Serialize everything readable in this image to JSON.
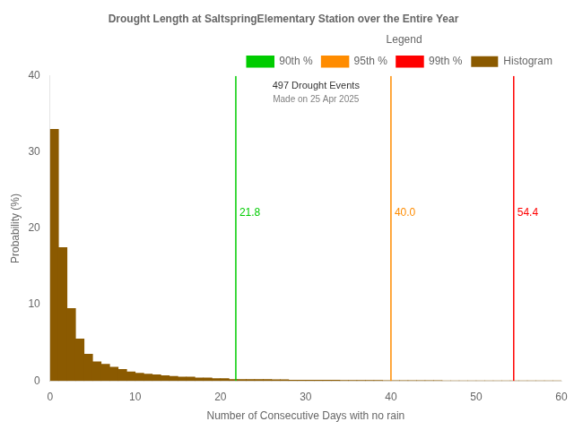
{
  "chart_data": {
    "type": "histogram",
    "title": "Drought Length at SaltspringElementary Station over the Entire Year",
    "xlabel": "Number of Consecutive Days with no rain",
    "ylabel": "Probability (%)",
    "bins": [
      0,
      1,
      2,
      3,
      4,
      5,
      6,
      7,
      8,
      9,
      10,
      11,
      12,
      13,
      14,
      15,
      16,
      17,
      18,
      19,
      20,
      21,
      22,
      23,
      24,
      25,
      26,
      27,
      28,
      29,
      30,
      31,
      32,
      33,
      34,
      35,
      36,
      37,
      38,
      39,
      40,
      41,
      42,
      43,
      44,
      45,
      46,
      47,
      48,
      49,
      50,
      51,
      52,
      53,
      54,
      55,
      56,
      57,
      58,
      59,
      60
    ],
    "series": [
      {
        "name": "Histogram",
        "color": "#8B5A00",
        "values": [
          33.0,
          17.5,
          9.5,
          5.5,
          3.5,
          2.5,
          2.2,
          1.8,
          1.5,
          1.2,
          1.0,
          0.9,
          0.8,
          0.7,
          0.6,
          0.5,
          0.5,
          0.4,
          0.4,
          0.3,
          0.3,
          0.2,
          0.2,
          0.2,
          0.2,
          0.2,
          0.15,
          0.15,
          0.1,
          0.1,
          0.1,
          0.1,
          0.1,
          0.1,
          0.08,
          0.08,
          0.07,
          0.07,
          0.06,
          0.05,
          0.05,
          0.04,
          0.04,
          0.03,
          0.03,
          0.03,
          0.02,
          0.02,
          0.02,
          0.01,
          0.01,
          0.01,
          0.01,
          0.01,
          0.0,
          0.0,
          0.0,
          0.0,
          0.0,
          0.0
        ]
      }
    ],
    "vlines": [
      {
        "name": "90th %",
        "x": 21.8,
        "color": "#00cc00"
      },
      {
        "name": "95th %",
        "x": 40.0,
        "label": "40.0",
        "color": "#ff8c00"
      },
      {
        "name": "99th %",
        "x": 54.4,
        "color": "#ff0000"
      }
    ],
    "annotations": [
      {
        "text": "497 Drought Events"
      },
      {
        "text": "Made on 25 Apr 2025",
        "color": "gray"
      }
    ],
    "legend": "upper right",
    "legend_title": "Legend",
    "grid": false,
    "xlim": [
      0,
      60
    ],
    "ylim": [
      0,
      40
    ],
    "xticks": [
      0,
      10,
      20,
      30,
      40,
      50,
      60
    ],
    "yticks": [
      0,
      10,
      20,
      30,
      40
    ]
  }
}
